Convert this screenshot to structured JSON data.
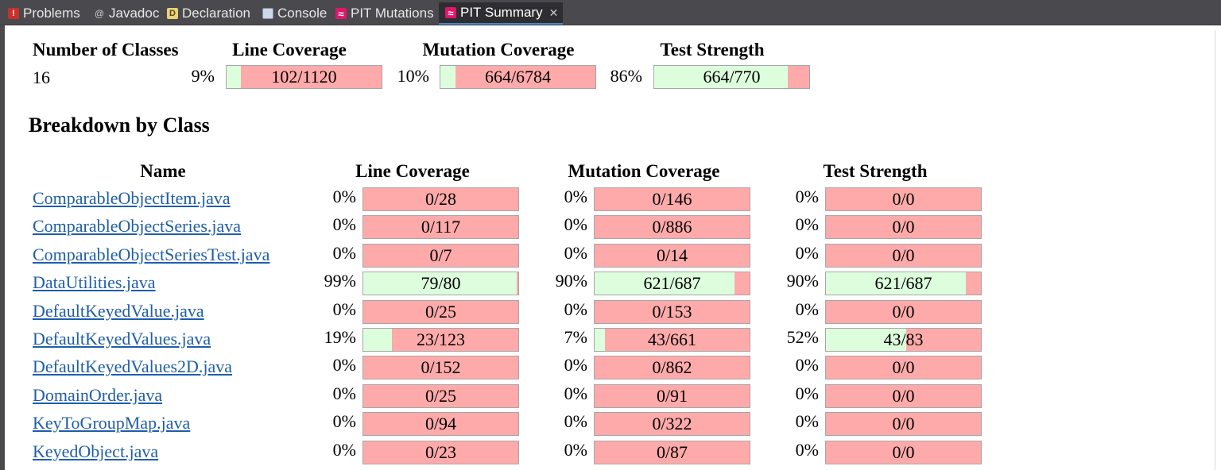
{
  "tabs": [
    {
      "label": "Problems",
      "icon": "problems-icon"
    },
    {
      "label": "Javadoc",
      "icon": "javadoc-icon"
    },
    {
      "label": "Declaration",
      "icon": "declaration-icon"
    },
    {
      "label": "Console",
      "icon": "console-icon"
    },
    {
      "label": "PIT Mutations",
      "icon": "pit-icon"
    },
    {
      "label": "PIT Summary",
      "icon": "pit-icon",
      "active": true
    }
  ],
  "project": {
    "headers": {
      "classes": "Number of Classes",
      "line": "Line Coverage",
      "mutation": "Mutation Coverage",
      "strength": "Test Strength"
    },
    "num_classes": "16",
    "line": {
      "pct": "9%",
      "text": "102/1120",
      "ratio": 0.091
    },
    "mutation": {
      "pct": "10%",
      "text": "664/6784",
      "ratio": 0.098
    },
    "strength": {
      "pct": "86%",
      "text": "664/770",
      "ratio": 0.862
    }
  },
  "breakdown": {
    "title": "Breakdown by Class",
    "headers": {
      "name": "Name",
      "line": "Line Coverage",
      "mutation": "Mutation Coverage",
      "strength": "Test Strength"
    },
    "rows": [
      {
        "name": "ComparableObjectItem.java",
        "line": {
          "pct": "0%",
          "text": "0/28",
          "ratio": 0
        },
        "mutation": {
          "pct": "0%",
          "text": "0/146",
          "ratio": 0
        },
        "strength": {
          "pct": "0%",
          "text": "0/0",
          "ratio": 0
        }
      },
      {
        "name": "ComparableObjectSeries.java",
        "line": {
          "pct": "0%",
          "text": "0/117",
          "ratio": 0
        },
        "mutation": {
          "pct": "0%",
          "text": "0/886",
          "ratio": 0
        },
        "strength": {
          "pct": "0%",
          "text": "0/0",
          "ratio": 0
        }
      },
      {
        "name": "ComparableObjectSeriesTest.java",
        "line": {
          "pct": "0%",
          "text": "0/7",
          "ratio": 0
        },
        "mutation": {
          "pct": "0%",
          "text": "0/14",
          "ratio": 0
        },
        "strength": {
          "pct": "0%",
          "text": "0/0",
          "ratio": 0
        }
      },
      {
        "name": "DataUtilities.java",
        "line": {
          "pct": "99%",
          "text": "79/80",
          "ratio": 0.9875
        },
        "mutation": {
          "pct": "90%",
          "text": "621/687",
          "ratio": 0.904
        },
        "strength": {
          "pct": "90%",
          "text": "621/687",
          "ratio": 0.904
        }
      },
      {
        "name": "DefaultKeyedValue.java",
        "line": {
          "pct": "0%",
          "text": "0/25",
          "ratio": 0
        },
        "mutation": {
          "pct": "0%",
          "text": "0/153",
          "ratio": 0
        },
        "strength": {
          "pct": "0%",
          "text": "0/0",
          "ratio": 0
        }
      },
      {
        "name": "DefaultKeyedValues.java",
        "line": {
          "pct": "19%",
          "text": "23/123",
          "ratio": 0.187
        },
        "mutation": {
          "pct": "7%",
          "text": "43/661",
          "ratio": 0.065
        },
        "strength": {
          "pct": "52%",
          "text": "43/83",
          "ratio": 0.518
        }
      },
      {
        "name": "DefaultKeyedValues2D.java",
        "line": {
          "pct": "0%",
          "text": "0/152",
          "ratio": 0
        },
        "mutation": {
          "pct": "0%",
          "text": "0/862",
          "ratio": 0
        },
        "strength": {
          "pct": "0%",
          "text": "0/0",
          "ratio": 0
        }
      },
      {
        "name": "DomainOrder.java",
        "line": {
          "pct": "0%",
          "text": "0/25",
          "ratio": 0
        },
        "mutation": {
          "pct": "0%",
          "text": "0/91",
          "ratio": 0
        },
        "strength": {
          "pct": "0%",
          "text": "0/0",
          "ratio": 0
        }
      },
      {
        "name": "KeyToGroupMap.java",
        "line": {
          "pct": "0%",
          "text": "0/94",
          "ratio": 0
        },
        "mutation": {
          "pct": "0%",
          "text": "0/322",
          "ratio": 0
        },
        "strength": {
          "pct": "0%",
          "text": "0/0",
          "ratio": 0
        }
      },
      {
        "name": "KeyedObject.java",
        "line": {
          "pct": "0%",
          "text": "0/23",
          "ratio": 0
        },
        "mutation": {
          "pct": "0%",
          "text": "0/87",
          "ratio": 0
        },
        "strength": {
          "pct": "0%",
          "text": "0/0",
          "ratio": 0
        }
      }
    ]
  },
  "colors": {
    "covered": "#ddfedd",
    "uncovered": "#ffaaaa",
    "link": "#1f5ea8",
    "tab_bar": "#4a4a4e",
    "active_tab_underline": "#4e88c7",
    "pit_icon": "#e0166b"
  }
}
